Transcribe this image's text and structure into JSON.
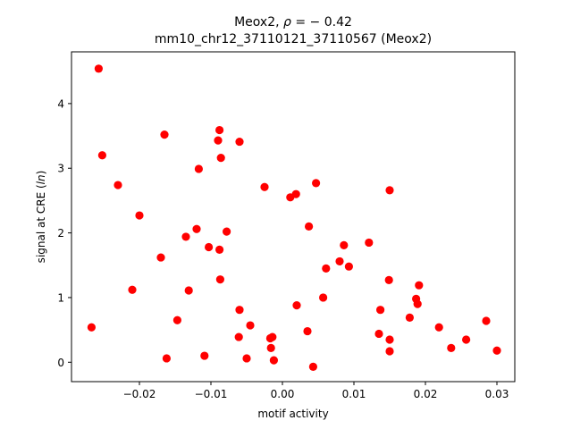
{
  "chart_data": {
    "type": "scatter",
    "title_line1_prefix": "Meox2, ",
    "title_rho_symbol": "ρ",
    "title_rho_value": " = − 0.42",
    "title_line2": "mm10_chr12_37110121_37110567 (Meox2)",
    "xlabel": "motif activity",
    "ylabel_prefix": "signal at CRE (",
    "ylabel_italic": "ln",
    "ylabel_suffix": ")",
    "xlim": [
      -0.0295,
      0.0325
    ],
    "ylim": [
      -0.3,
      4.8
    ],
    "x_ticks": [
      -0.02,
      -0.01,
      0.0,
      0.01,
      0.02,
      0.03
    ],
    "x_tick_labels": [
      "−0.02",
      "−0.01",
      "0.00",
      "0.01",
      "0.02",
      "0.03"
    ],
    "y_ticks": [
      0,
      1,
      2,
      3,
      4
    ],
    "y_tick_labels": [
      "0",
      "1",
      "2",
      "3",
      "4"
    ],
    "marker_color": "#ff0000",
    "grid": false,
    "legend": "none",
    "points": [
      {
        "x": -0.0257,
        "y": 4.54
      },
      {
        "x": -0.0252,
        "y": 3.2
      },
      {
        "x": -0.023,
        "y": 2.74
      },
      {
        "x": -0.0267,
        "y": 0.54
      },
      {
        "x": -0.021,
        "y": 1.12
      },
      {
        "x": -0.02,
        "y": 2.27
      },
      {
        "x": -0.0165,
        "y": 3.52
      },
      {
        "x": -0.017,
        "y": 1.62
      },
      {
        "x": -0.0162,
        "y": 0.06
      },
      {
        "x": -0.0147,
        "y": 0.65
      },
      {
        "x": -0.0135,
        "y": 1.94
      },
      {
        "x": -0.0131,
        "y": 1.11
      },
      {
        "x": -0.012,
        "y": 2.06
      },
      {
        "x": -0.0117,
        "y": 2.99
      },
      {
        "x": -0.0109,
        "y": 0.1
      },
      {
        "x": -0.0103,
        "y": 1.78
      },
      {
        "x": -0.009,
        "y": 3.43
      },
      {
        "x": -0.0088,
        "y": 3.59
      },
      {
        "x": -0.0086,
        "y": 3.16
      },
      {
        "x": -0.0088,
        "y": 1.74
      },
      {
        "x": -0.0087,
        "y": 1.28
      },
      {
        "x": -0.0078,
        "y": 2.02
      },
      {
        "x": -0.006,
        "y": 3.41
      },
      {
        "x": -0.006,
        "y": 0.81
      },
      {
        "x": -0.0061,
        "y": 0.39
      },
      {
        "x": -0.005,
        "y": 0.06
      },
      {
        "x": -0.0045,
        "y": 0.57
      },
      {
        "x": -0.0025,
        "y": 2.71
      },
      {
        "x": -0.0017,
        "y": 0.37
      },
      {
        "x": -0.0014,
        "y": 0.39
      },
      {
        "x": -0.0016,
        "y": 0.22
      },
      {
        "x": -0.0012,
        "y": 0.03
      },
      {
        "x": 0.0011,
        "y": 2.55
      },
      {
        "x": 0.0019,
        "y": 2.6
      },
      {
        "x": 0.002,
        "y": 0.88
      },
      {
        "x": 0.0035,
        "y": 0.48
      },
      {
        "x": 0.0037,
        "y": 2.1
      },
      {
        "x": 0.0043,
        "y": -0.07
      },
      {
        "x": 0.0047,
        "y": 2.77
      },
      {
        "x": 0.0057,
        "y": 1.0
      },
      {
        "x": 0.0061,
        "y": 1.45
      },
      {
        "x": 0.008,
        "y": 1.56
      },
      {
        "x": 0.0086,
        "y": 1.81
      },
      {
        "x": 0.0093,
        "y": 1.48
      },
      {
        "x": 0.0121,
        "y": 1.85
      },
      {
        "x": 0.0135,
        "y": 0.44
      },
      {
        "x": 0.0137,
        "y": 0.81
      },
      {
        "x": 0.0149,
        "y": 1.27
      },
      {
        "x": 0.015,
        "y": 2.66
      },
      {
        "x": 0.015,
        "y": 0.35
      },
      {
        "x": 0.015,
        "y": 0.17
      },
      {
        "x": 0.0178,
        "y": 0.69
      },
      {
        "x": 0.0187,
        "y": 0.98
      },
      {
        "x": 0.0189,
        "y": 0.9
      },
      {
        "x": 0.0191,
        "y": 1.19
      },
      {
        "x": 0.0219,
        "y": 0.54
      },
      {
        "x": 0.0236,
        "y": 0.22
      },
      {
        "x": 0.0257,
        "y": 0.35
      },
      {
        "x": 0.0285,
        "y": 0.64
      },
      {
        "x": 0.03,
        "y": 0.18
      }
    ]
  }
}
